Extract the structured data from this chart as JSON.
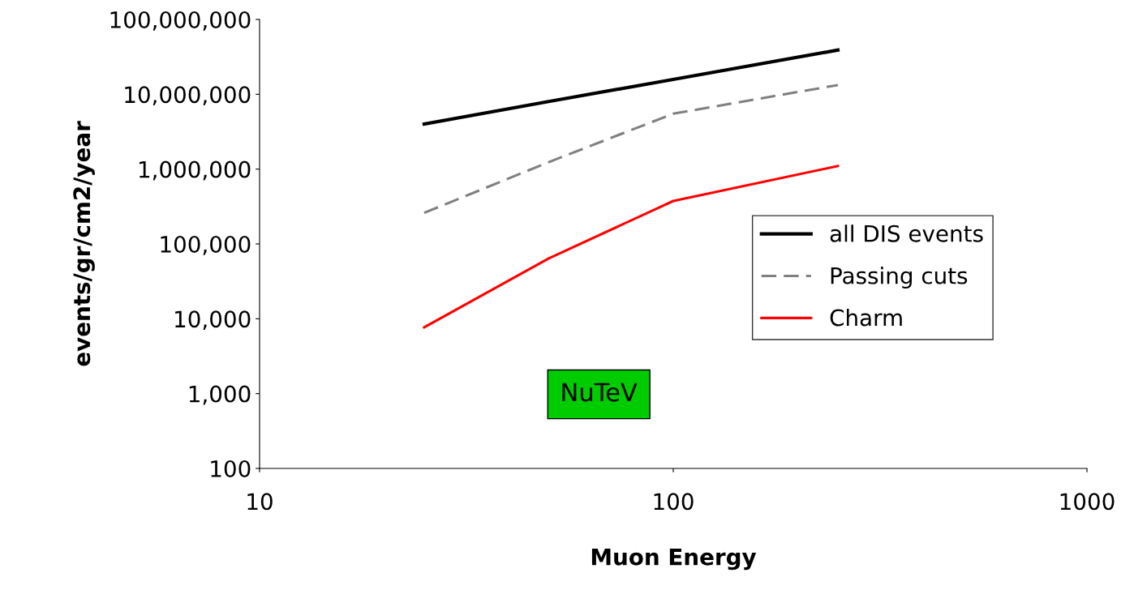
{
  "chart_data": {
    "type": "line",
    "xlabel": "Muon Energy",
    "ylabel": "events/gr/cm2/year",
    "log": "xy",
    "grid": false,
    "legend": "center right",
    "marker": "none",
    "x": [
      25,
      50,
      100,
      250
    ],
    "series": [
      {
        "name": "all DIS events",
        "color": "#000000",
        "line_style": "solid",
        "values": [
          4000000,
          8000000,
          15800000,
          39000000
        ]
      },
      {
        "name": "Passing cuts",
        "color": "#808080",
        "line_style": "dashed",
        "values": [
          260000,
          1240000,
          5500000,
          13300000
        ]
      },
      {
        "name": "Charm",
        "color": "#ff0000",
        "line_style": "solid",
        "values": [
          7700,
          64000,
          375000,
          1100000
        ]
      }
    ],
    "xlim": [
      10,
      1000
    ],
    "xticks": [
      10,
      100,
      1000
    ],
    "ylim": [
      100,
      100000000
    ],
    "yticks": [
      100,
      {
        "value": 1000,
        "label": "1,000"
      },
      {
        "value": 10000,
        "label": "10,000"
      },
      {
        "value": 100000,
        "label": "100,000"
      },
      {
        "value": 1000000,
        "label": "1,000,000"
      },
      {
        "value": 10000000,
        "label": "10,000,000"
      },
      {
        "value": 100000000,
        "label": "100,000,000"
      }
    ],
    "annotations": [
      "NuTeV"
    ]
  }
}
